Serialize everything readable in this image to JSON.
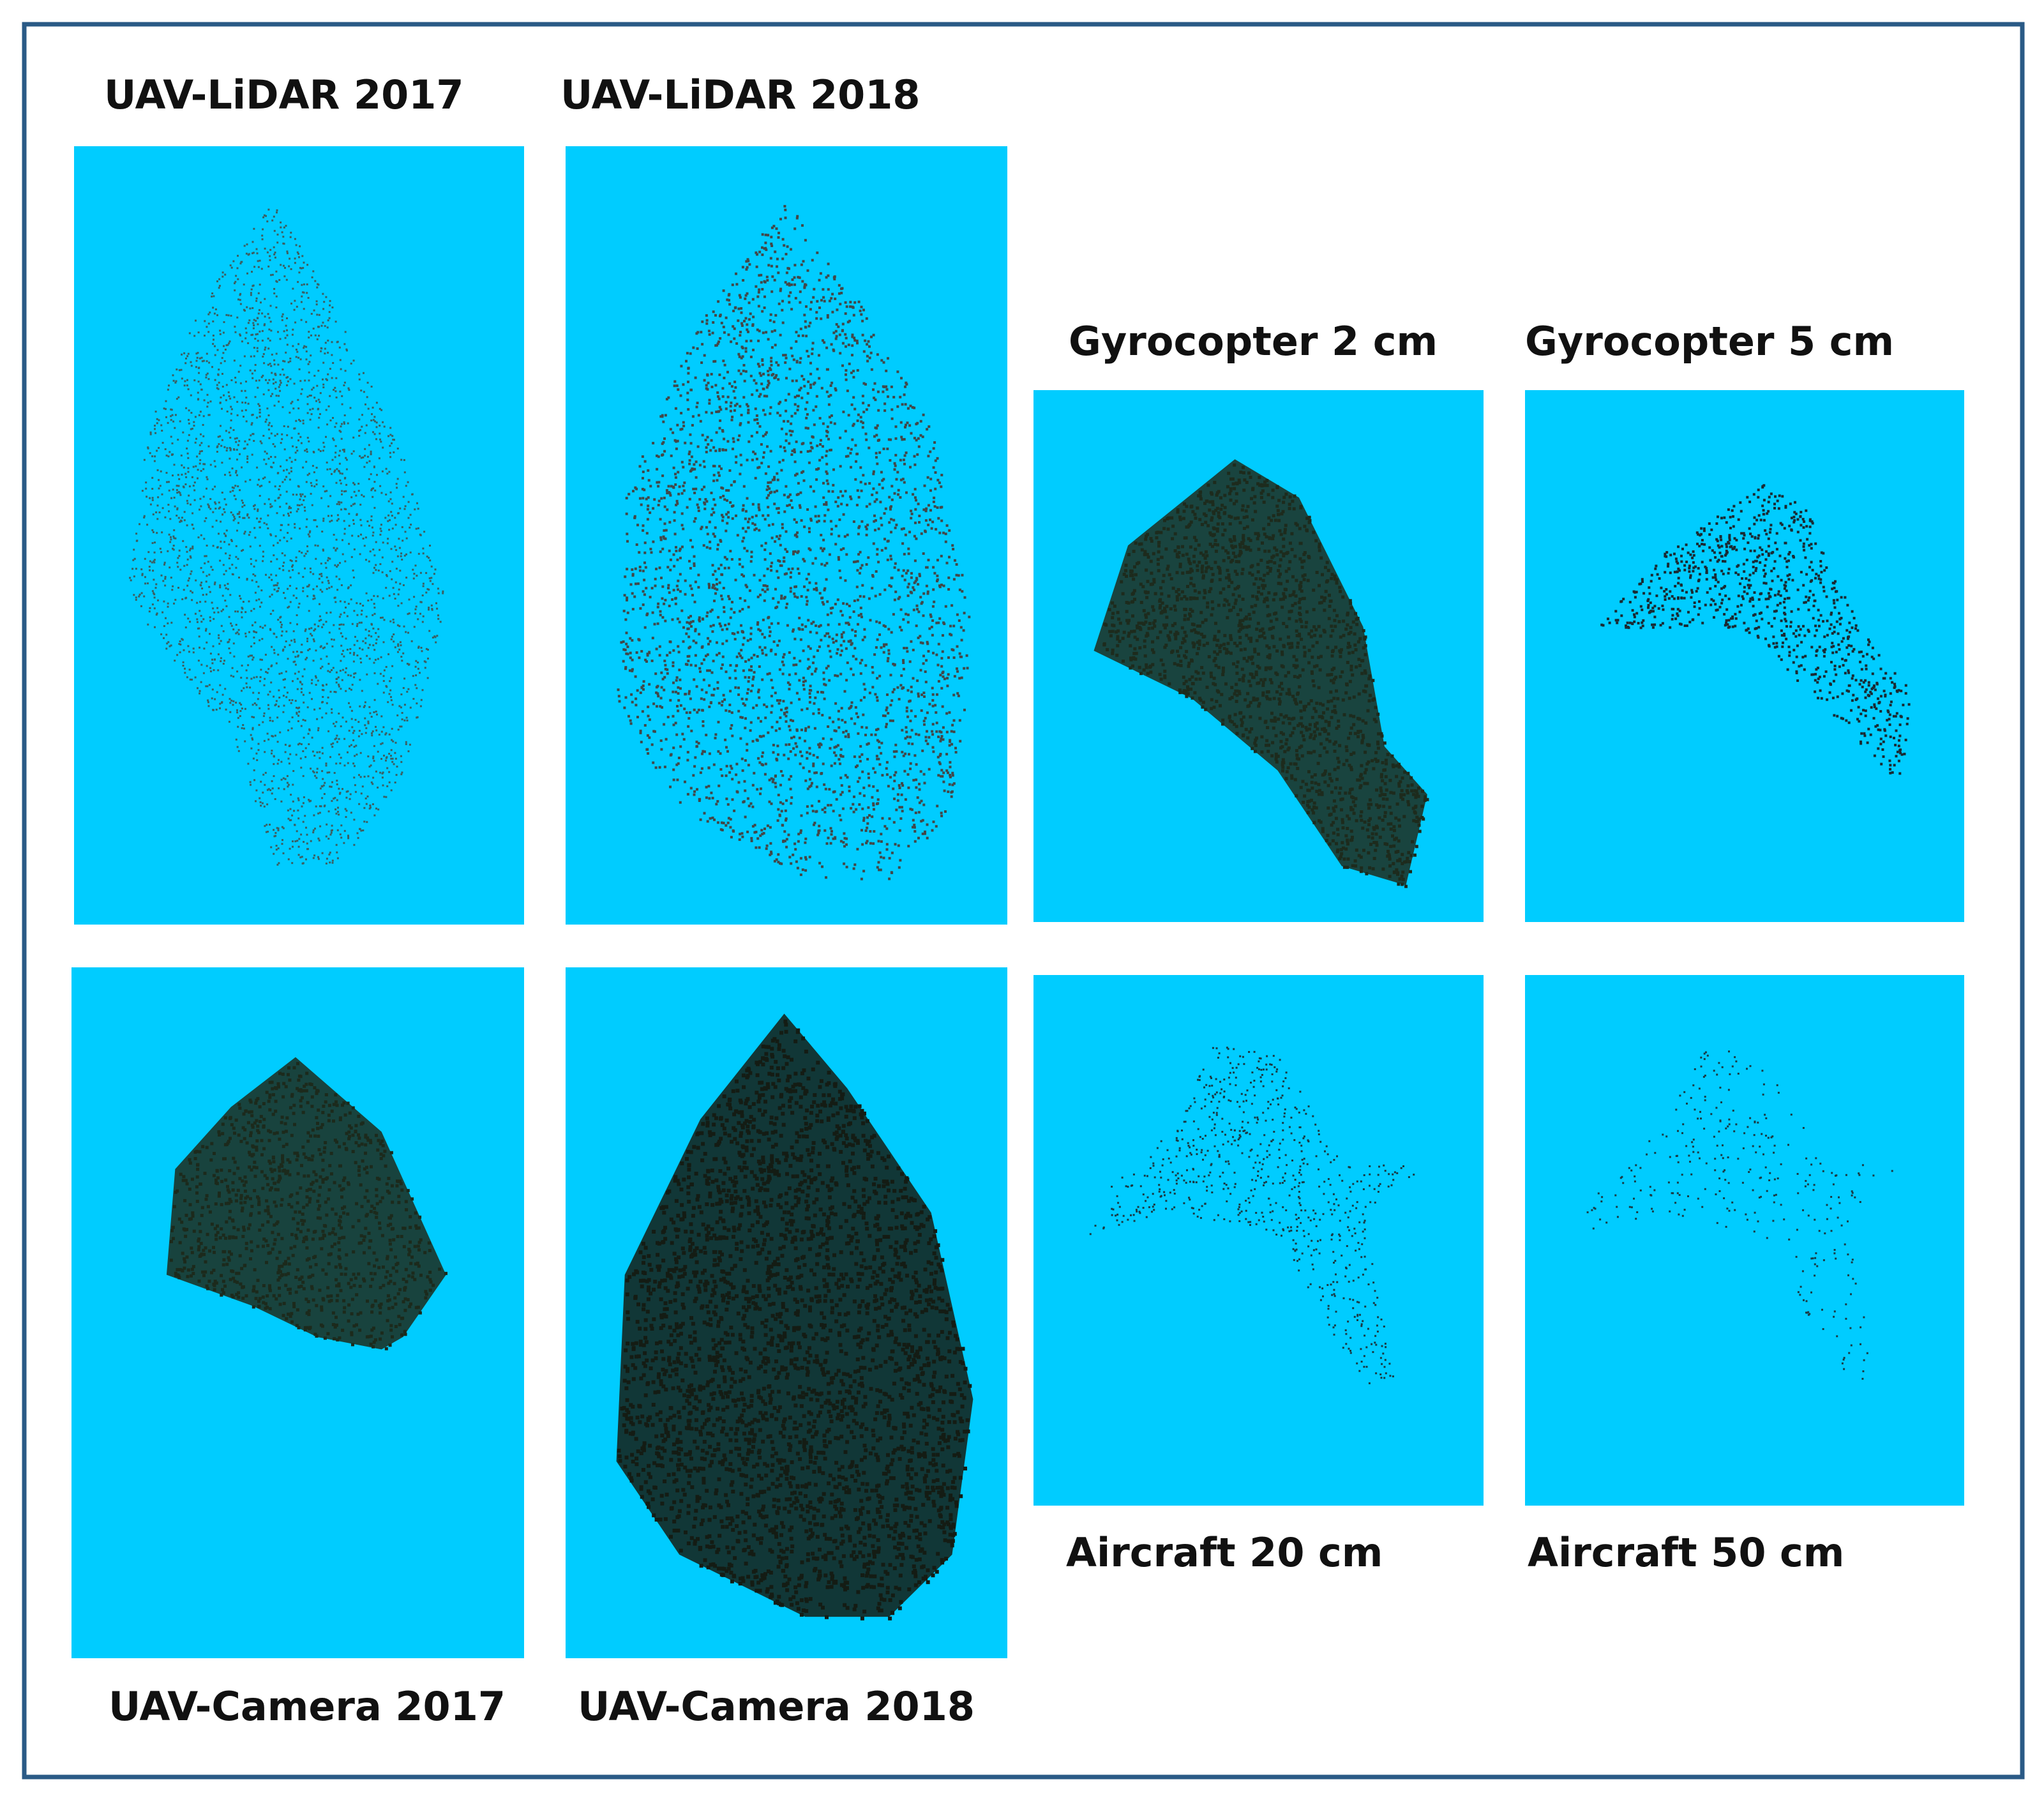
{
  "panels": [
    {
      "label": "UAV-LiDAR 2017"
    },
    {
      "label": "UAV-LiDAR 2018"
    },
    {
      "label": "Gyrocopter 2 cm"
    },
    {
      "label": "Gyrocopter 5 cm"
    },
    {
      "label": "UAV-Camera 2017"
    },
    {
      "label": "UAV-Camera 2018"
    },
    {
      "label": "Aircraft 20 cm"
    },
    {
      "label": "Aircraft 50 cm"
    }
  ]
}
